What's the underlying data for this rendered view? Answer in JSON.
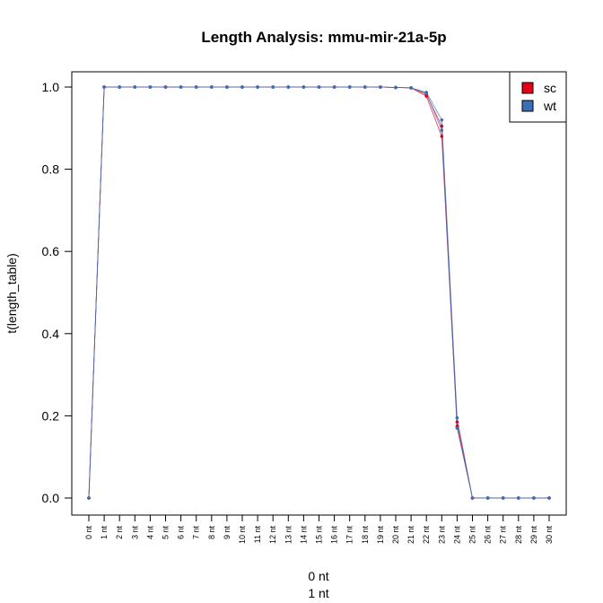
{
  "chart_data": {
    "type": "line",
    "title": "Length Analysis: mmu-mir-21a-5p",
    "xlabel_lines": [
      "0 nt",
      "1 nt"
    ],
    "ylabel": "t(length_table)",
    "categories": [
      "0 nt",
      "1 nt",
      "2 nt",
      "3 nt",
      "4 nt",
      "5 nt",
      "6 nt",
      "7 nt",
      "8 nt",
      "9 nt",
      "10 nt",
      "11 nt",
      "12 nt",
      "13 nt",
      "14 nt",
      "15 nt",
      "16 nt",
      "17 nt",
      "18 nt",
      "19 nt",
      "20 nt",
      "21 nt",
      "22 nt",
      "23 nt",
      "24 nt",
      "25 nt",
      "26 nt",
      "27 nt",
      "28 nt",
      "29 nt",
      "30 nt"
    ],
    "ylim": [
      0,
      1.0
    ],
    "yticks": [
      "0.0",
      "0.2",
      "0.4",
      "0.6",
      "0.8",
      "1.0"
    ],
    "legend_position": "top-right",
    "grid": false,
    "series": [
      {
        "name": "sc",
        "color": "#E3001B",
        "replicates": [
          [
            0,
            1,
            1,
            1,
            1,
            1,
            1,
            1,
            1,
            1,
            1,
            1,
            1,
            1,
            1,
            1,
            1,
            1,
            1,
            1,
            0.999,
            0.998,
            0.978,
            0.88,
            0.175,
            0,
            0,
            0,
            0,
            0,
            0
          ],
          [
            0,
            1,
            1,
            1,
            1,
            1,
            1,
            1,
            1,
            1,
            1,
            1,
            1,
            1,
            1,
            1,
            1,
            1,
            1,
            1,
            0.999,
            0.998,
            0.982,
            0.905,
            0.185,
            0,
            0,
            0,
            0,
            0,
            0
          ]
        ]
      },
      {
        "name": "wt",
        "color": "#3A6FB5",
        "replicates": [
          [
            0,
            1,
            1,
            1,
            1,
            1,
            1,
            1,
            1,
            1,
            1,
            1,
            1,
            1,
            1,
            1,
            1,
            1,
            1,
            1,
            0.999,
            0.998,
            0.985,
            0.895,
            0.17,
            0,
            0,
            0,
            0,
            0,
            0
          ],
          [
            0,
            1,
            1,
            1,
            1,
            1,
            1,
            1,
            1,
            1,
            1,
            1,
            1,
            1,
            1,
            1,
            1,
            1,
            1,
            1,
            0.999,
            0.998,
            0.987,
            0.92,
            0.195,
            0,
            0,
            0,
            0,
            0,
            0
          ]
        ]
      }
    ]
  }
}
